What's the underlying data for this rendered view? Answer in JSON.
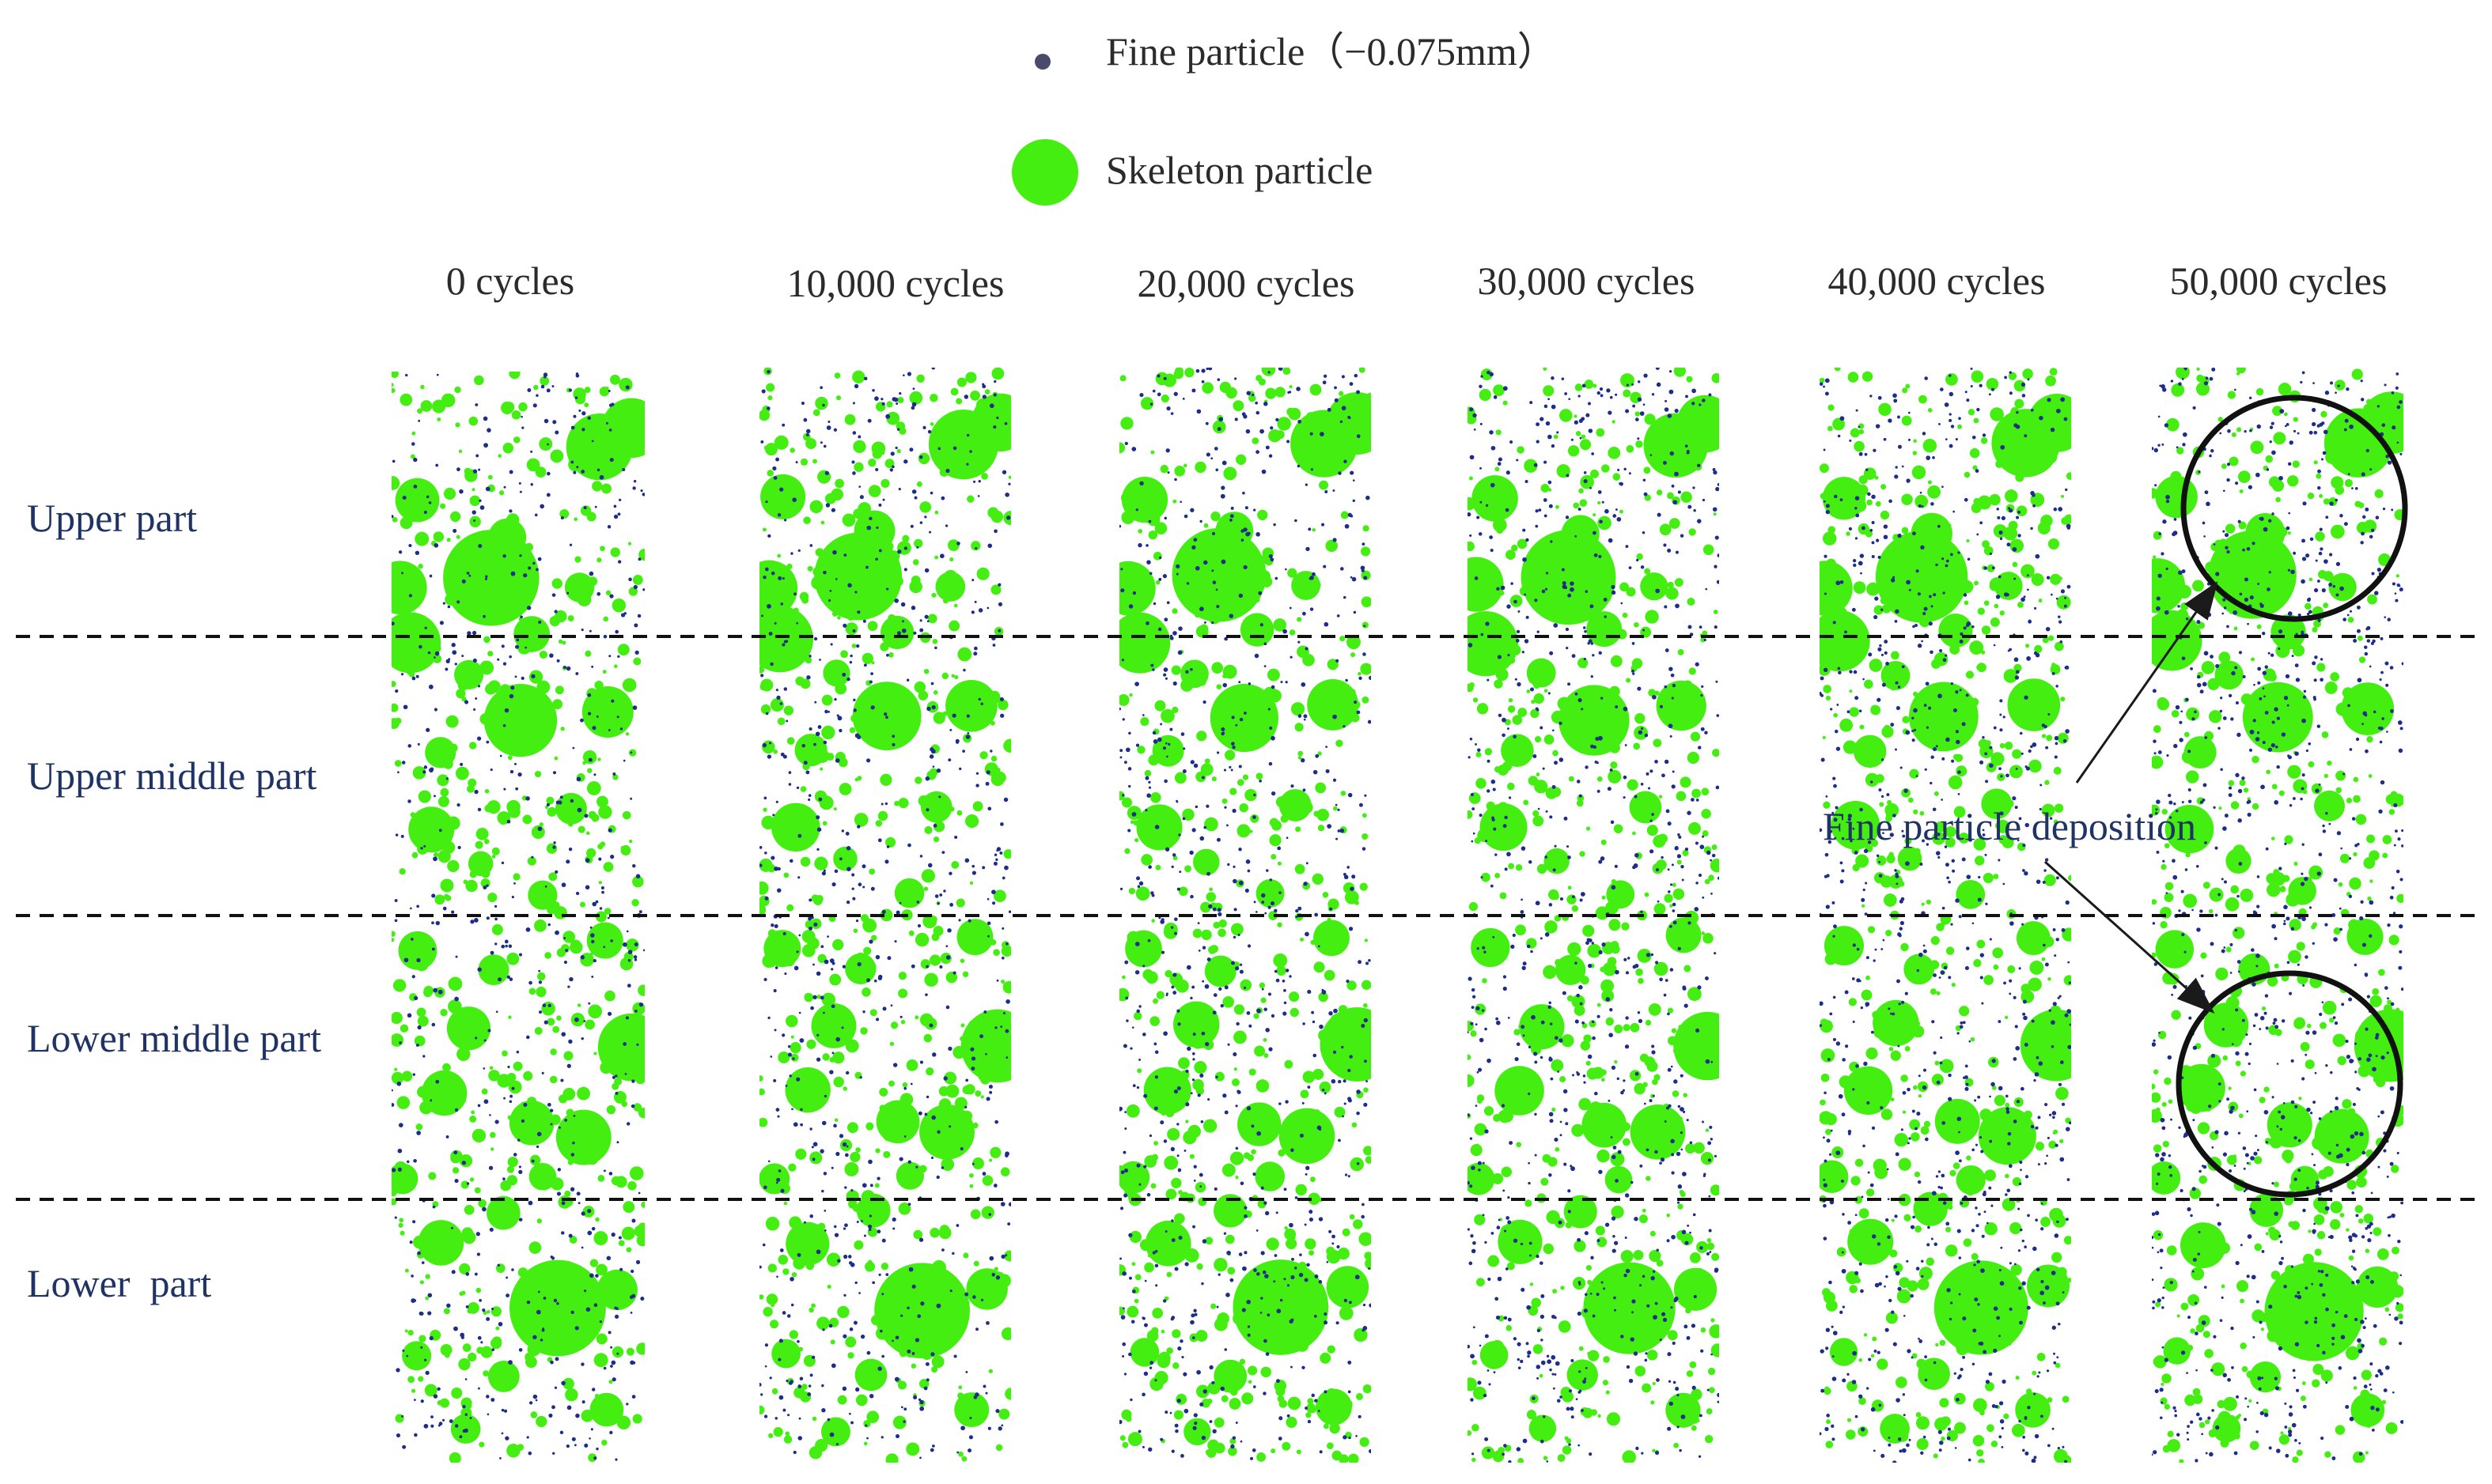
{
  "legend": {
    "fine_label": "Fine particle（−0.075mm）",
    "skeleton_label": "Skeleton particle"
  },
  "columns": [
    {
      "label": "0 cycles"
    },
    {
      "label": "10,000 cycles"
    },
    {
      "label": "20,000 cycles"
    },
    {
      "label": "30,000 cycles"
    },
    {
      "label": "40,000 cycles"
    },
    {
      "label": "50,000 cycles"
    }
  ],
  "parts": [
    {
      "label": "Upper part"
    },
    {
      "label": "Upper middle part"
    },
    {
      "label": "Lower middle part"
    },
    {
      "label": "Lower  part"
    }
  ],
  "annotation": {
    "label": "Fine particle deposition"
  },
  "colors": {
    "skeleton": "#44ee11",
    "fine": "#1e2c8a",
    "label_text": "#1f3364",
    "title_text": "#2b2b2b",
    "legend_fine_dot": "#4a4a6a"
  }
}
